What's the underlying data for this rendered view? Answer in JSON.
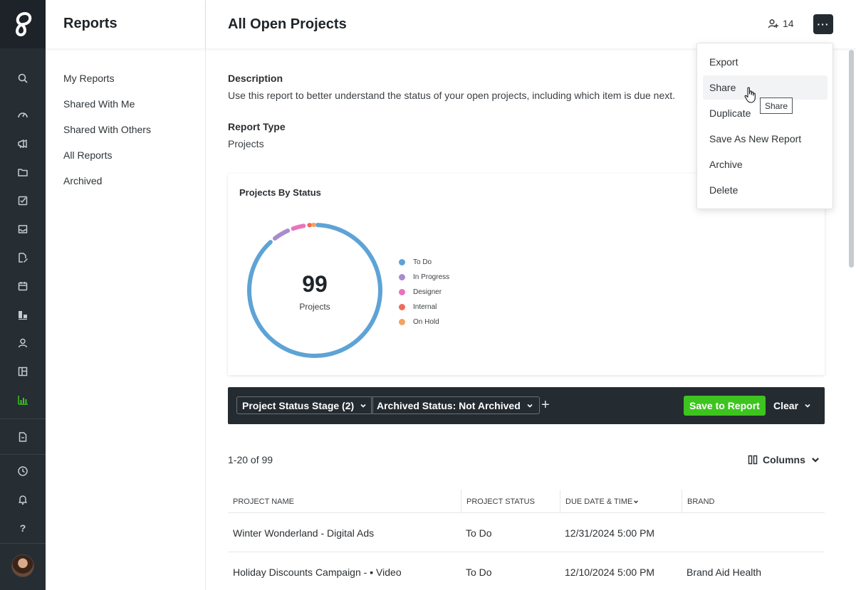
{
  "sidebar": {
    "title": "Reports",
    "items": [
      {
        "label": "My Reports"
      },
      {
        "label": "Shared With Me"
      },
      {
        "label": "Shared With Others"
      },
      {
        "label": "All Reports"
      },
      {
        "label": "Archived"
      }
    ]
  },
  "rail": {
    "icons": [
      "logo-icon",
      "search-icon",
      "dashboard-gauge-icon",
      "megaphone-icon",
      "folder-icon",
      "task-check-icon",
      "inbox-icon",
      "file-edit-icon",
      "calendar-icon",
      "boards-icon",
      "user-icon",
      "layout-icon",
      "reports-chart-icon",
      "document-icon",
      "clock-icon",
      "notification-icon",
      "help-icon"
    ],
    "help_label": "?",
    "active_color": "#3dc41f"
  },
  "header": {
    "title": "All Open Projects",
    "members_count": "14",
    "more_label": "···"
  },
  "details": {
    "description_label": "Description",
    "description_text": "Use this report to better understand the status of your open projects, including which item is due next.",
    "report_type_label": "Report Type",
    "report_type_value": "Projects"
  },
  "chart": {
    "title": "Projects By Status",
    "total": "99",
    "total_label": "Projects"
  },
  "chart_data": {
    "type": "pie",
    "title": "Projects By Status",
    "center_value": 99,
    "center_label": "Projects",
    "legend_position": "right",
    "series": [
      {
        "name": "To Do",
        "value": 88,
        "color": "#5ea3d5"
      },
      {
        "name": "In Progress",
        "value": 5,
        "color": "#a98bd0"
      },
      {
        "name": "Designer",
        "value": 4,
        "color": "#e774bd"
      },
      {
        "name": "Internal",
        "value": 1,
        "color": "#f06a5a"
      },
      {
        "name": "On Hold",
        "value": 1,
        "color": "#f4a261"
      }
    ]
  },
  "filters": {
    "chips": [
      {
        "label": "Project Status Stage (2)"
      },
      {
        "label": "Archived Status: Not Archived"
      }
    ],
    "add_label": "+",
    "save_label": "Save to Report",
    "clear_label": "Clear"
  },
  "table": {
    "count_text": "1-20 of 99",
    "columns_label": "Columns",
    "headers": [
      "PROJECT NAME",
      "PROJECT STATUS",
      "DUE DATE & TIME",
      "BRAND"
    ],
    "rows": [
      [
        "Winter Wonderland - Digital Ads",
        "To Do",
        "12/31/2024 5:00 PM",
        ""
      ],
      [
        "Holiday Discounts Campaign - ▪ Video",
        "To Do",
        "12/10/2024 5:00 PM",
        "Brand Aid Health"
      ]
    ]
  },
  "menu": {
    "items": [
      "Export",
      "Share",
      "Duplicate",
      "Save As New Report",
      "Archive",
      "Delete"
    ],
    "tooltip": "Share"
  }
}
